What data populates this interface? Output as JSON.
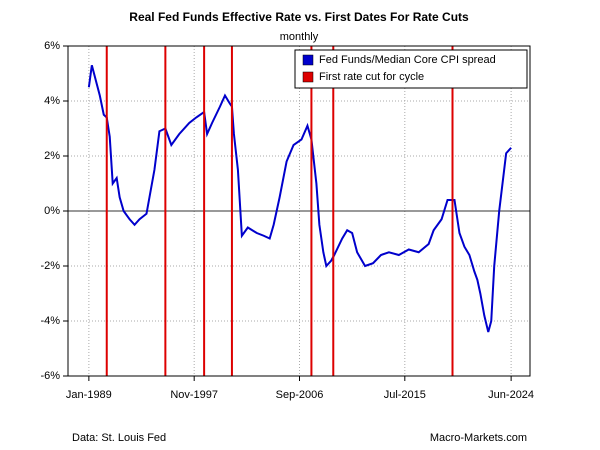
{
  "chart_data": {
    "type": "line",
    "title": "Real Fed Funds Effective Rate vs. First Dates For Rate Cuts",
    "subtitle": "monthly",
    "source": "Data: St. Louis Fed",
    "credit": "Macro-Markets.com",
    "x": [
      "1989-01",
      "1989-04",
      "1989-12",
      "1990-04",
      "1990-07",
      "1990-10",
      "1991-01",
      "1991-05",
      "1991-08",
      "1991-12",
      "1992-06",
      "1992-11",
      "1993-04",
      "1993-11",
      "1994-02",
      "1994-07",
      "1994-12",
      "1995-06",
      "1995-12",
      "1996-08",
      "1997-06",
      "1998-01",
      "1998-09",
      "1998-12",
      "1999-05",
      "2000-01",
      "2000-06",
      "2000-11",
      "2001-01",
      "2001-03",
      "2001-07",
      "2001-11",
      "2002-05",
      "2003-02",
      "2003-09",
      "2004-03",
      "2004-07",
      "2005-01",
      "2005-08",
      "2006-03",
      "2006-11",
      "2007-05",
      "2007-09",
      "2008-02",
      "2008-05",
      "2008-09",
      "2008-12",
      "2009-05",
      "2009-08",
      "2010-04",
      "2010-09",
      "2011-02",
      "2011-07",
      "2012-03",
      "2012-11",
      "2013-07",
      "2014-03",
      "2015-01",
      "2015-11",
      "2016-09",
      "2017-07",
      "2017-12",
      "2018-08",
      "2019-02",
      "2019-09",
      "2020-02",
      "2020-07",
      "2020-12",
      "2021-05",
      "2021-08",
      "2021-11",
      "2022-03",
      "2022-07",
      "2022-10",
      "2023-01",
      "2023-06",
      "2023-11",
      "2024-01",
      "2024-06"
    ],
    "series": [
      {
        "name": "Fed Funds/Median Core CPI spread",
        "color": "#0000cc",
        "values": [
          4.5,
          5.3,
          4.2,
          3.5,
          3.4,
          2.7,
          1.0,
          1.2,
          0.5,
          0.0,
          -0.3,
          -0.5,
          -0.3,
          -0.1,
          0.5,
          1.5,
          2.9,
          3.0,
          2.4,
          2.8,
          3.2,
          3.4,
          3.6,
          2.8,
          3.2,
          3.8,
          4.2,
          3.9,
          3.8,
          2.8,
          1.5,
          -0.9,
          -0.6,
          -0.8,
          -0.9,
          -1.0,
          -0.5,
          0.5,
          1.8,
          2.4,
          2.6,
          3.1,
          2.6,
          1.0,
          -0.5,
          -1.5,
          -2.0,
          -1.8,
          -1.6,
          -1.0,
          -0.7,
          -0.8,
          -1.5,
          -2.0,
          -1.9,
          -1.6,
          -1.5,
          -1.6,
          -1.4,
          -1.5,
          -1.2,
          -0.7,
          -0.3,
          0.4,
          0.4,
          -0.8,
          -1.3,
          -1.6,
          -2.2,
          -2.5,
          -3.0,
          -3.8,
          -4.4,
          -4.0,
          -2.0,
          0.0,
          1.5,
          2.1,
          2.3
        ]
      },
      {
        "name": "First rate cut for cycle",
        "color": "#dd0000",
        "type": "vline",
        "x": [
          "1990-07",
          "1995-06",
          "1998-09",
          "2001-01",
          "2007-09",
          "2009-07",
          "2019-07"
        ]
      }
    ],
    "xlim": [
      "1987-04",
      "2026-01"
    ],
    "xticks": [
      {
        "value": "1989-01",
        "label": "Jan-1989"
      },
      {
        "value": "1997-11",
        "label": "Nov-1997"
      },
      {
        "value": "2006-09",
        "label": "Sep-2006"
      },
      {
        "value": "2015-07",
        "label": "Jul-2015"
      },
      {
        "value": "2024-06",
        "label": "Jun-2024"
      }
    ],
    "ylim": [
      -6,
      6
    ],
    "yticks": [
      {
        "value": -6,
        "label": "-6%"
      },
      {
        "value": -4,
        "label": "-4%"
      },
      {
        "value": -2,
        "label": "-2%"
      },
      {
        "value": 0,
        "label": "0%"
      },
      {
        "value": 2,
        "label": "2%"
      },
      {
        "value": 4,
        "label": "4%"
      },
      {
        "value": 6,
        "label": "6%"
      }
    ],
    "reference_line": 0,
    "grid": true,
    "legend": "topright"
  }
}
